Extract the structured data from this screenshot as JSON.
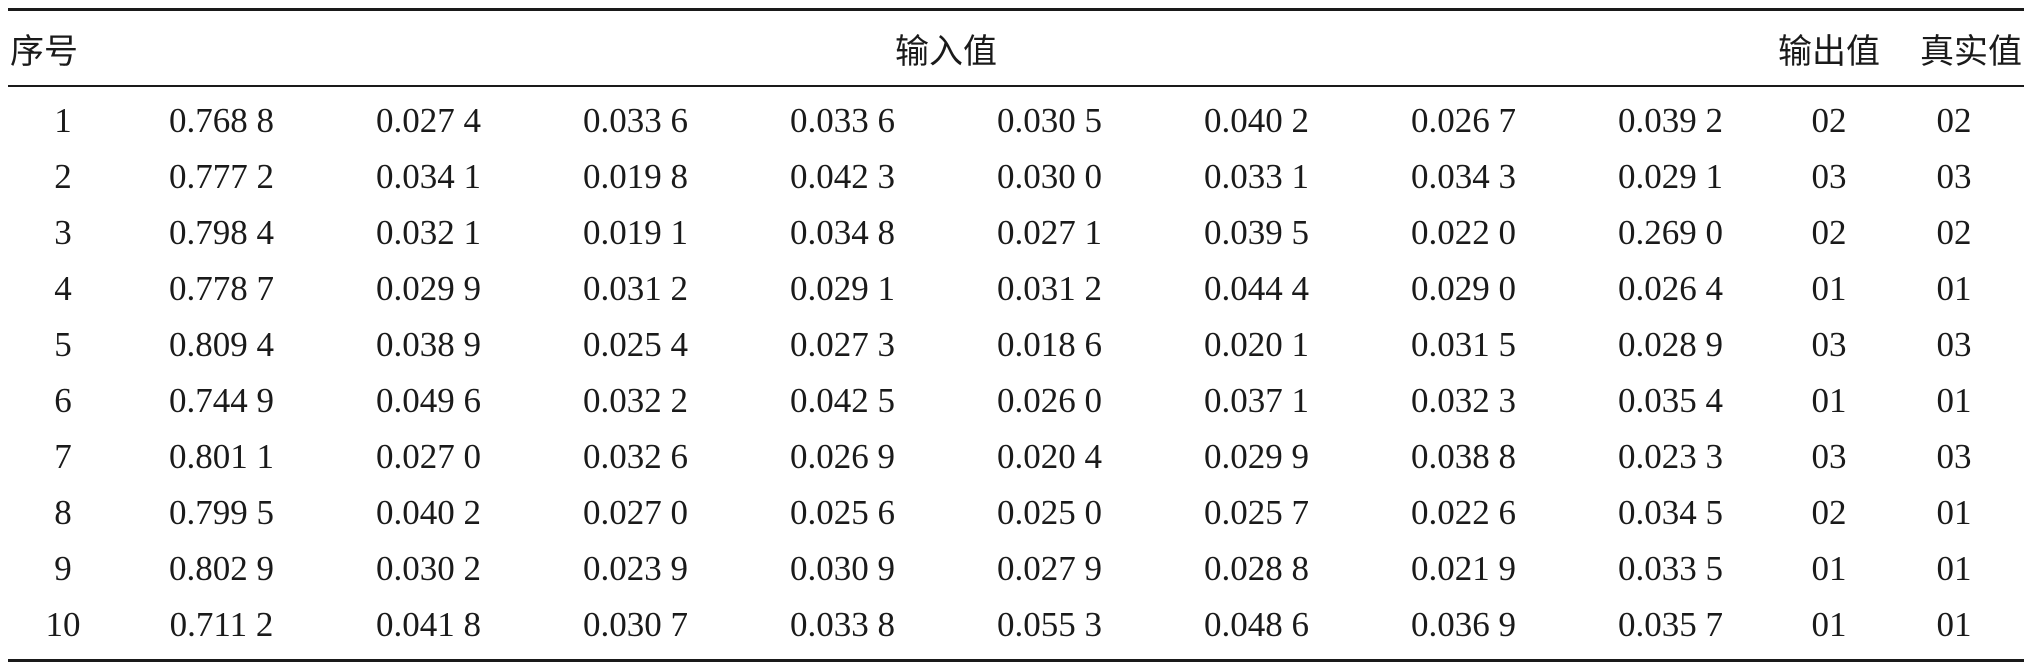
{
  "table": {
    "headers": {
      "index": "序号",
      "input": "输入值",
      "output": "输出值",
      "truth": "真实值"
    },
    "rows": [
      {
        "index": "1",
        "inputs": [
          "0.768 8",
          "0.027 4",
          "0.033 6",
          "0.033 6",
          "0.030 5",
          "0.040 2",
          "0.026 7",
          "0.039 2"
        ],
        "output": "02",
        "truth": "02"
      },
      {
        "index": "2",
        "inputs": [
          "0.777 2",
          "0.034 1",
          "0.019 8",
          "0.042 3",
          "0.030 0",
          "0.033 1",
          "0.034 3",
          "0.029 1"
        ],
        "output": "03",
        "truth": "03"
      },
      {
        "index": "3",
        "inputs": [
          "0.798 4",
          "0.032 1",
          "0.019 1",
          "0.034 8",
          "0.027 1",
          "0.039 5",
          "0.022 0",
          "0.269 0"
        ],
        "output": "02",
        "truth": "02"
      },
      {
        "index": "4",
        "inputs": [
          "0.778 7",
          "0.029 9",
          "0.031 2",
          "0.029 1",
          "0.031 2",
          "0.044 4",
          "0.029 0",
          "0.026 4"
        ],
        "output": "01",
        "truth": "01"
      },
      {
        "index": "5",
        "inputs": [
          "0.809 4",
          "0.038 9",
          "0.025 4",
          "0.027 3",
          "0.018 6",
          "0.020 1",
          "0.031 5",
          "0.028 9"
        ],
        "output": "03",
        "truth": "03"
      },
      {
        "index": "6",
        "inputs": [
          "0.744 9",
          "0.049 6",
          "0.032 2",
          "0.042 5",
          "0.026 0",
          "0.037 1",
          "0.032 3",
          "0.035 4"
        ],
        "output": "01",
        "truth": "01"
      },
      {
        "index": "7",
        "inputs": [
          "0.801 1",
          "0.027 0",
          "0.032 6",
          "0.026 9",
          "0.020 4",
          "0.029 9",
          "0.038 8",
          "0.023 3"
        ],
        "output": "03",
        "truth": "03"
      },
      {
        "index": "8",
        "inputs": [
          "0.799 5",
          "0.040 2",
          "0.027 0",
          "0.025 6",
          "0.025 0",
          "0.025 7",
          "0.022 6",
          "0.034 5"
        ],
        "output": "02",
        "truth": "01"
      },
      {
        "index": "9",
        "inputs": [
          "0.802 9",
          "0.030 2",
          "0.023 9",
          "0.030 9",
          "0.027 9",
          "0.028 8",
          "0.021 9",
          "0.033 5"
        ],
        "output": "01",
        "truth": "01"
      },
      {
        "index": "10",
        "inputs": [
          "0.711 2",
          "0.041 8",
          "0.030 7",
          "0.033 8",
          "0.055 3",
          "0.048 6",
          "0.036 9",
          "0.035 7"
        ],
        "output": "01",
        "truth": "01"
      }
    ]
  }
}
